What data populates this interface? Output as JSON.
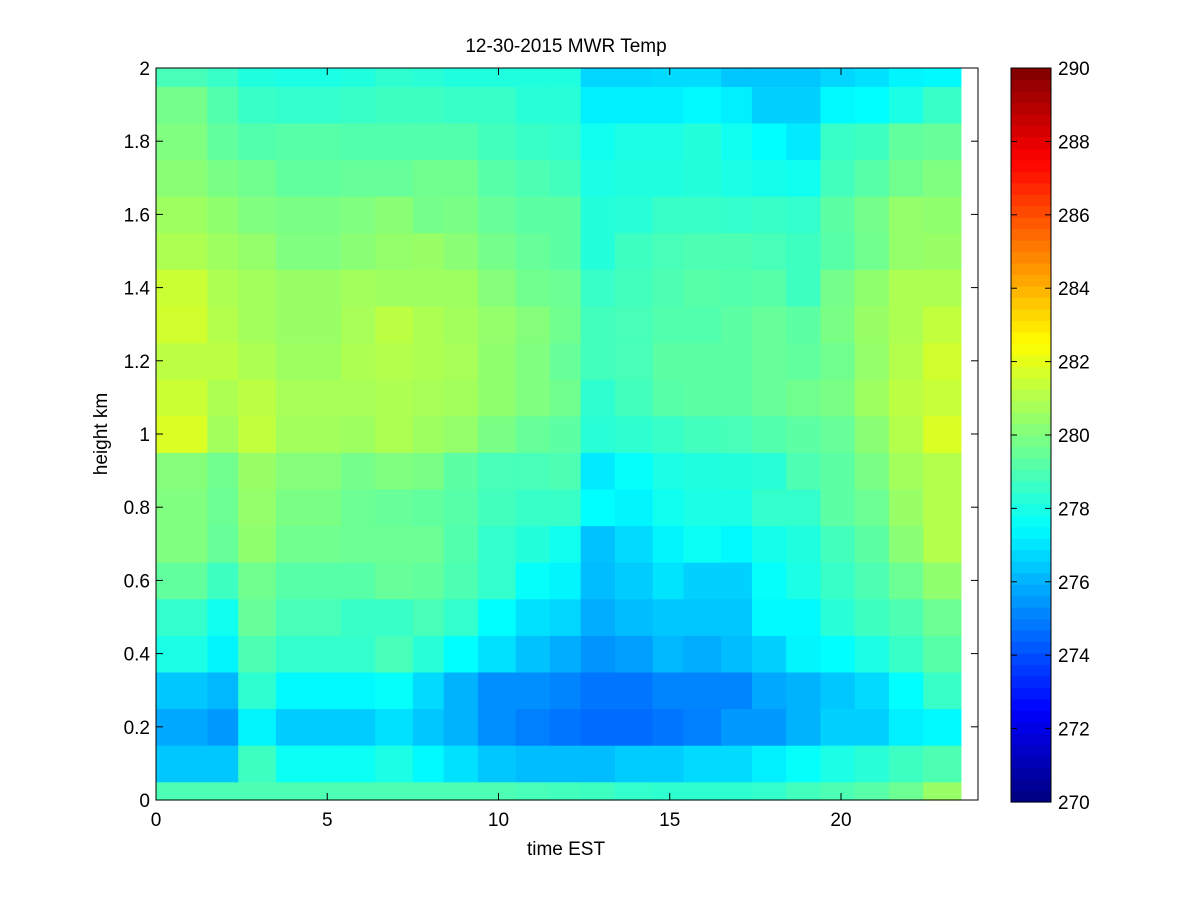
{
  "chart_data": {
    "type": "heatmap",
    "title": "12-30-2015 MWR Temp",
    "xlabel": "time EST",
    "ylabel": "height km",
    "xlim": [
      0,
      24
    ],
    "ylim": [
      0,
      2
    ],
    "x_ticks": [
      0,
      5,
      10,
      15,
      20
    ],
    "y_ticks": [
      0,
      0.2,
      0.4,
      0.6,
      0.8,
      1,
      1.2,
      1.4,
      1.6,
      1.8,
      2
    ],
    "colorbar": {
      "min": 270,
      "max": 290,
      "ticks": [
        270,
        272,
        274,
        276,
        278,
        280,
        282,
        284,
        286,
        288,
        290
      ],
      "colormap": "jet"
    },
    "x_edges": [
      0,
      1.5,
      2.4,
      3.5,
      5.4,
      6.4,
      7.5,
      8.4,
      9.4,
      10.5,
      11.5,
      12.4,
      13.4,
      14.5,
      15.4,
      16.5,
      17.4,
      18.4,
      19.4,
      20.4,
      21.4,
      22.4,
      23.5
    ],
    "y_edges": [
      0,
      0.05,
      0.15,
      0.25,
      0.35,
      0.45,
      0.55,
      0.65,
      0.75,
      0.85,
      0.95,
      1.05,
      1.15,
      1.25,
      1.35,
      1.45,
      1.55,
      1.65,
      1.75,
      1.85,
      1.95,
      2.0
    ],
    "z": [
      [
        279.0,
        279.0,
        279.0,
        279.0,
        279.0,
        279.0,
        279.0,
        279.0,
        279.0,
        278.9,
        278.8,
        278.7,
        278.5,
        278.4,
        278.4,
        278.4,
        278.5,
        278.8,
        279.0,
        279.2,
        279.6,
        280.5
      ],
      [
        276.4,
        276.4,
        278.7,
        277.7,
        277.7,
        278.0,
        277.4,
        276.9,
        276.4,
        276.2,
        276.2,
        276.2,
        276.5,
        276.5,
        276.8,
        276.8,
        277.2,
        277.6,
        278.0,
        278.3,
        278.7,
        279.0
      ],
      [
        275.8,
        275.5,
        277.3,
        276.5,
        276.5,
        276.9,
        276.4,
        276.0,
        275.3,
        275.0,
        274.8,
        274.6,
        274.6,
        274.8,
        275.0,
        275.5,
        275.5,
        276.0,
        276.6,
        276.6,
        277.2,
        277.4
      ],
      [
        276.4,
        276.1,
        278.4,
        277.4,
        277.4,
        277.6,
        276.8,
        276.0,
        275.3,
        275.3,
        275.1,
        274.8,
        274.8,
        275.1,
        275.1,
        275.1,
        275.8,
        276.0,
        276.4,
        276.8,
        277.5,
        278.6
      ],
      [
        278.0,
        277.3,
        279.0,
        278.5,
        278.5,
        278.9,
        278.3,
        277.5,
        276.9,
        276.3,
        275.9,
        275.4,
        275.6,
        276.1,
        275.9,
        276.2,
        276.6,
        277.3,
        277.5,
        278.0,
        278.6,
        279.2
      ],
      [
        278.5,
        277.8,
        279.5,
        278.9,
        278.6,
        278.6,
        278.9,
        278.5,
        277.5,
        276.9,
        276.7,
        275.9,
        276.2,
        276.4,
        276.4,
        276.4,
        277.4,
        277.4,
        278.3,
        278.7,
        279.0,
        279.6
      ],
      [
        279.4,
        278.7,
        279.7,
        279.2,
        279.2,
        279.5,
        279.4,
        279.0,
        278.5,
        277.6,
        277.3,
        276.2,
        276.5,
        277.0,
        276.6,
        276.6,
        277.6,
        278.0,
        278.6,
        279.0,
        279.6,
        280.3
      ],
      [
        280.0,
        279.5,
        280.3,
        279.7,
        279.6,
        279.6,
        279.6,
        279.1,
        278.5,
        278.2,
        277.8,
        276.3,
        276.8,
        277.3,
        277.7,
        277.4,
        277.9,
        278.1,
        278.8,
        279.3,
        280.2,
        281.0
      ],
      [
        280.0,
        279.6,
        280.4,
        279.9,
        279.6,
        279.5,
        279.4,
        279.2,
        278.8,
        278.6,
        278.6,
        277.5,
        277.3,
        277.8,
        278.0,
        278.0,
        278.5,
        278.5,
        279.3,
        279.6,
        280.5,
        281.0
      ],
      [
        280.1,
        279.7,
        280.5,
        280.1,
        279.8,
        280.0,
        279.9,
        279.3,
        278.9,
        278.9,
        279.0,
        277.1,
        277.6,
        278.0,
        278.1,
        278.2,
        278.3,
        279.0,
        279.3,
        279.9,
        280.7,
        281.0
      ],
      [
        281.8,
        280.7,
        281.3,
        280.7,
        280.6,
        280.9,
        280.6,
        280.4,
        279.9,
        279.5,
        279.3,
        278.3,
        278.4,
        278.6,
        278.8,
        278.9,
        279.1,
        279.3,
        279.5,
        280.2,
        281.0,
        281.8
      ],
      [
        281.5,
        280.9,
        281.2,
        280.8,
        280.8,
        280.9,
        280.8,
        280.7,
        280.3,
        280.0,
        279.7,
        278.4,
        278.8,
        279.2,
        279.3,
        279.3,
        279.5,
        279.7,
        279.9,
        280.6,
        281.2,
        281.4
      ],
      [
        281.2,
        281.2,
        280.9,
        280.6,
        280.9,
        281.0,
        280.9,
        280.8,
        280.3,
        280.0,
        279.5,
        278.8,
        278.9,
        279.3,
        279.3,
        279.3,
        279.5,
        279.4,
        279.7,
        280.4,
        281.0,
        281.6
      ],
      [
        281.6,
        281.0,
        280.7,
        280.5,
        280.8,
        281.2,
        280.9,
        280.7,
        280.4,
        280.1,
        279.7,
        278.8,
        278.9,
        279.1,
        279.1,
        279.3,
        279.5,
        279.3,
        279.9,
        280.5,
        280.9,
        281.3
      ],
      [
        281.5,
        280.9,
        280.7,
        280.5,
        280.7,
        280.6,
        280.6,
        280.6,
        280.1,
        279.7,
        279.6,
        278.6,
        278.8,
        279.0,
        279.2,
        279.1,
        279.2,
        278.7,
        279.8,
        280.3,
        280.9,
        280.9
      ],
      [
        280.9,
        280.6,
        280.4,
        280.0,
        280.2,
        280.4,
        280.5,
        280.2,
        279.8,
        279.5,
        279.3,
        278.2,
        278.7,
        278.9,
        279.0,
        279.0,
        278.9,
        278.7,
        279.2,
        279.7,
        280.4,
        280.5
      ],
      [
        280.6,
        280.3,
        280.0,
        279.9,
        280.0,
        280.2,
        279.8,
        279.9,
        279.5,
        279.3,
        279.3,
        278.2,
        278.3,
        278.6,
        278.6,
        278.5,
        278.6,
        278.5,
        279.3,
        279.8,
        280.4,
        280.3
      ],
      [
        280.2,
        279.9,
        279.7,
        279.4,
        279.5,
        279.5,
        279.7,
        279.7,
        279.2,
        279.0,
        278.8,
        278.0,
        278.1,
        278.1,
        278.2,
        278.0,
        277.9,
        277.8,
        278.8,
        279.2,
        279.7,
        280.0
      ],
      [
        280.0,
        279.4,
        279.1,
        279.2,
        279.1,
        279.1,
        279.1,
        279.1,
        278.8,
        278.6,
        278.5,
        277.8,
        278.0,
        278.0,
        278.2,
        277.8,
        277.5,
        277.1,
        278.6,
        278.7,
        279.4,
        279.5
      ],
      [
        279.8,
        279.1,
        278.6,
        278.5,
        278.6,
        278.7,
        278.7,
        278.6,
        278.6,
        278.3,
        278.3,
        277.2,
        277.2,
        277.2,
        277.4,
        277.2,
        276.6,
        276.6,
        277.4,
        277.5,
        278.0,
        278.6
      ],
      [
        278.9,
        278.6,
        278.1,
        278.0,
        278.1,
        278.4,
        278.3,
        278.1,
        278.1,
        278.1,
        278.1,
        276.7,
        276.7,
        276.8,
        276.8,
        276.4,
        276.4,
        276.4,
        276.7,
        276.9,
        277.3,
        277.4
      ]
    ]
  }
}
